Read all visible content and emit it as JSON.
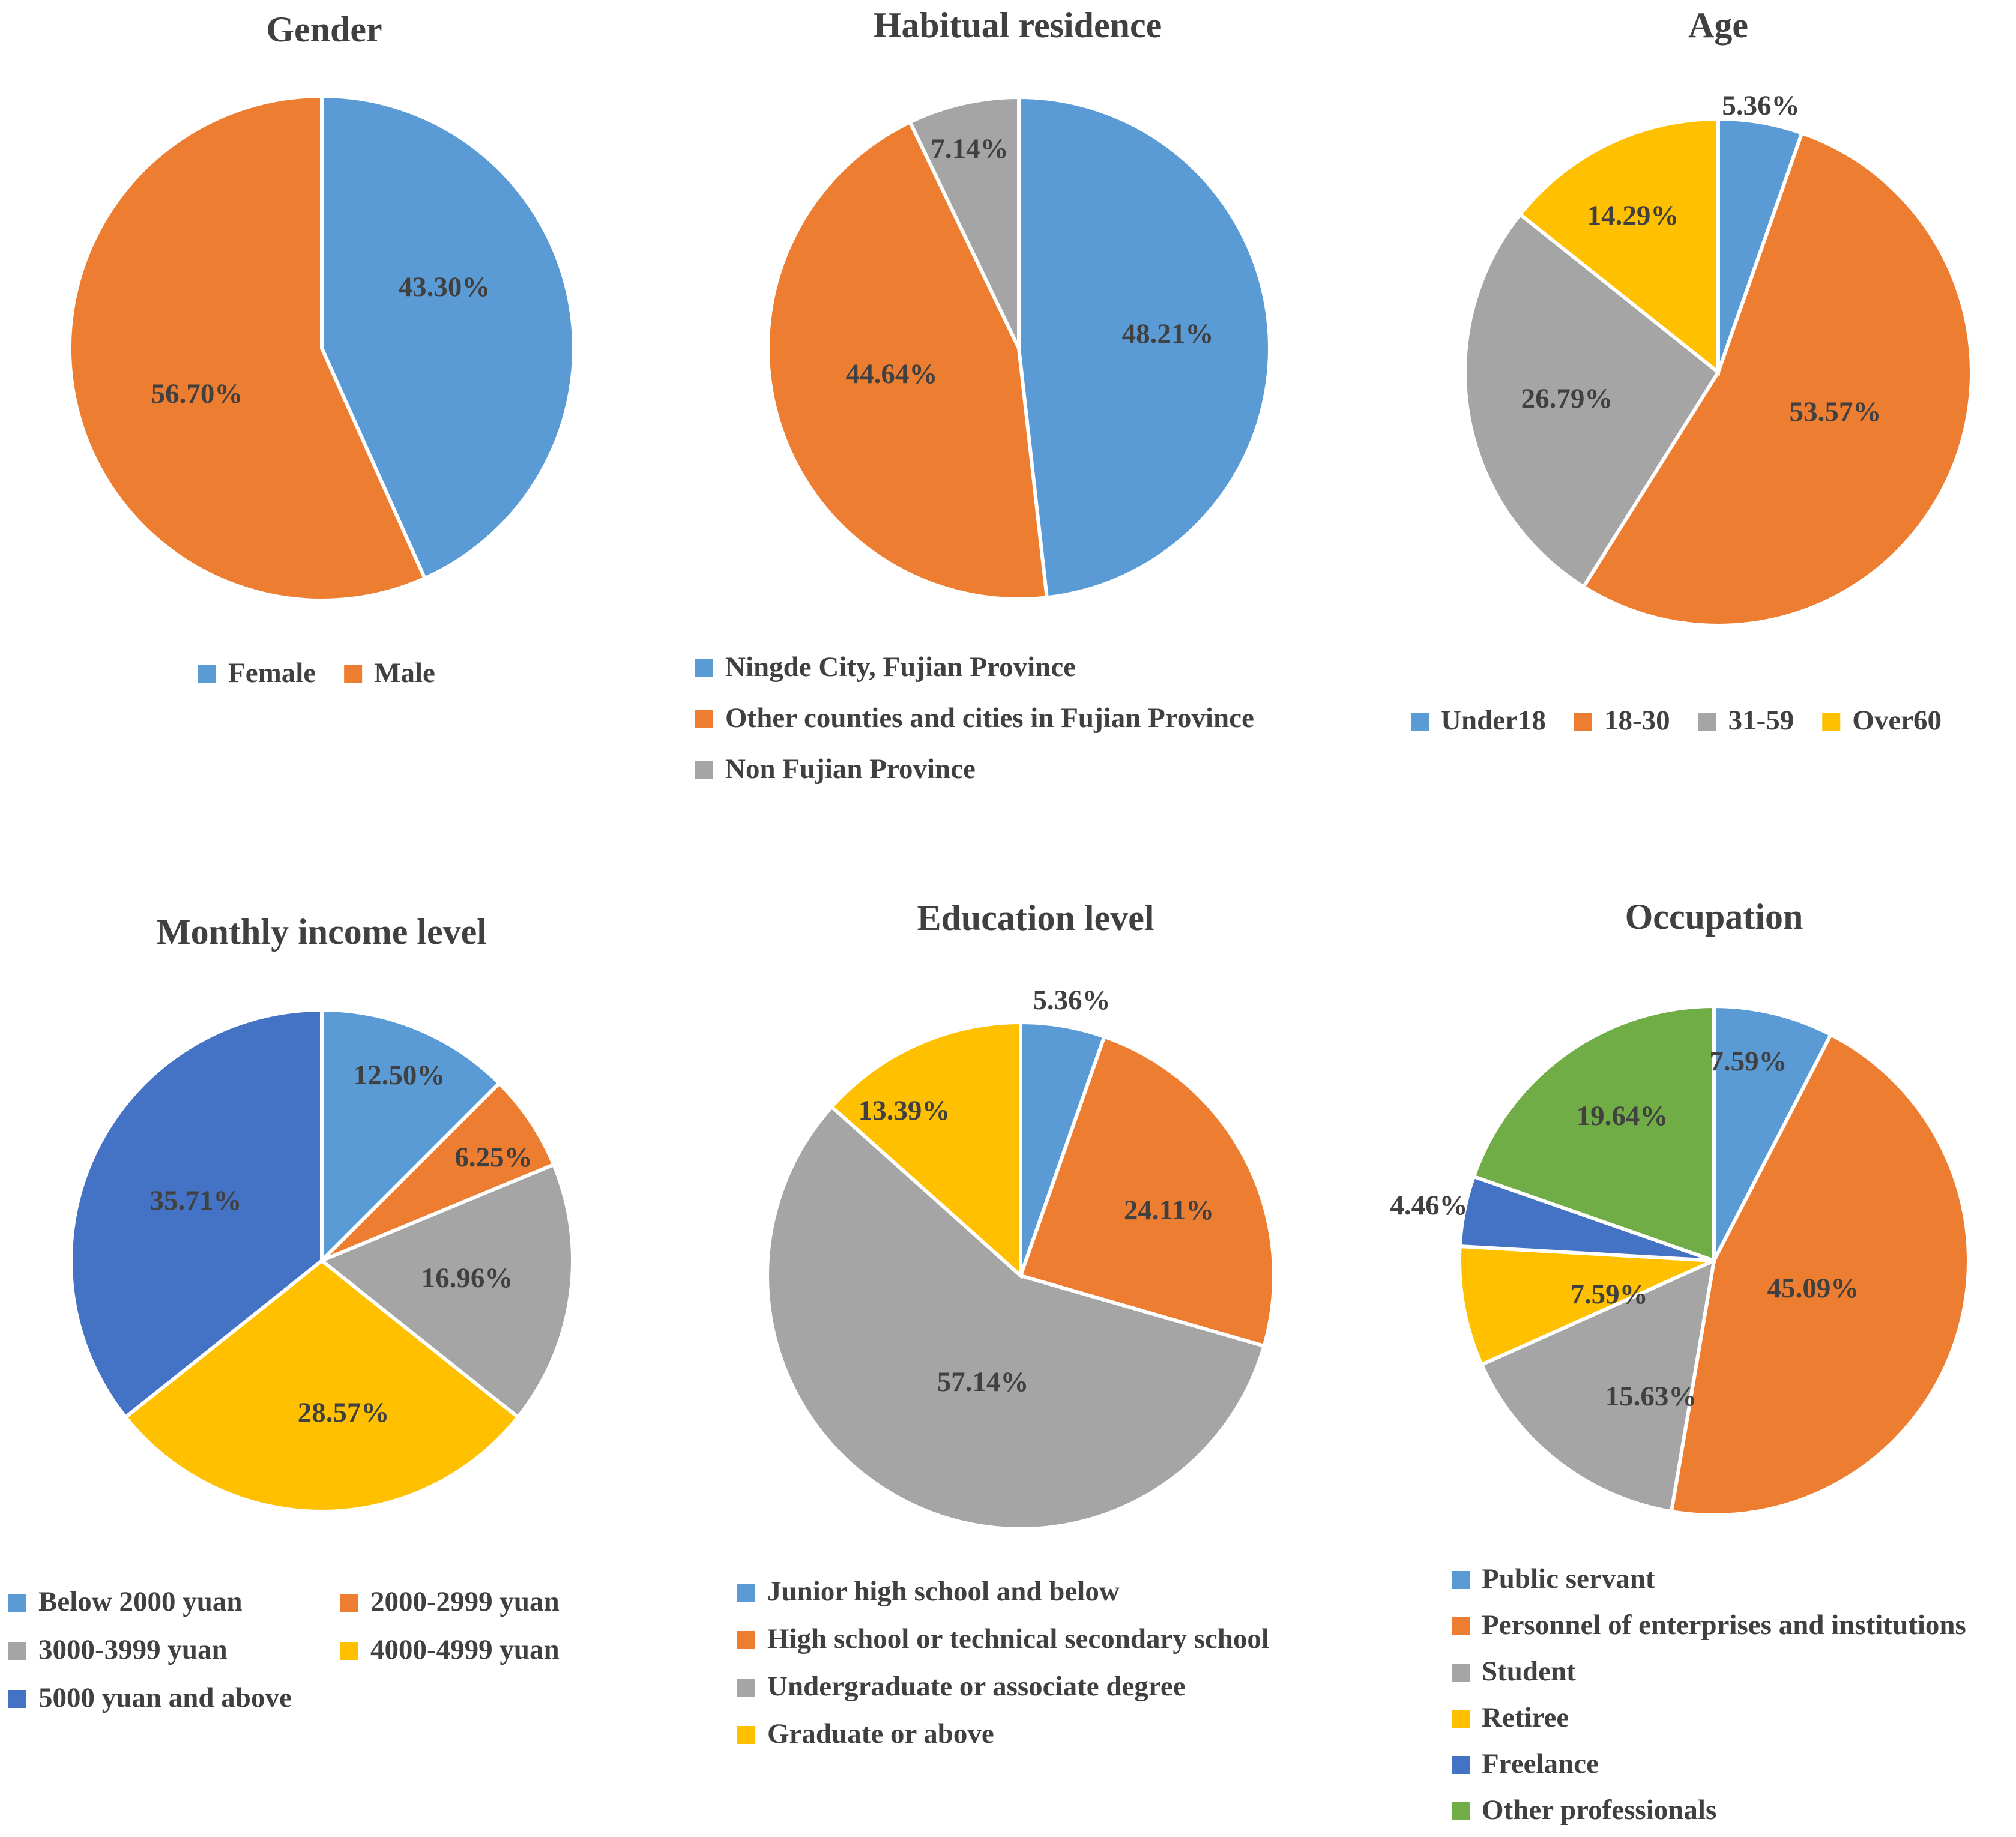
{
  "chart_data": [
    {
      "type": "pie",
      "title": "Gender",
      "legend_position": "bottom",
      "slices": [
        {
          "label": "Female",
          "value": 43.3,
          "display": "43.30%",
          "color": "#5B9BD5"
        },
        {
          "label": "Male",
          "value": 56.7,
          "display": "56.70%",
          "color": "#ED7D31"
        }
      ]
    },
    {
      "type": "pie",
      "title": "Habitual residence",
      "legend_position": "bottom",
      "slices": [
        {
          "label": "Ningde City, Fujian Province",
          "value": 48.21,
          "display": "48.21%",
          "color": "#5B9BD5"
        },
        {
          "label": "Other counties and cities in Fujian Province",
          "value": 44.64,
          "display": "44.64%",
          "color": "#ED7D31"
        },
        {
          "label": "Non Fujian Province",
          "value": 7.14,
          "display": "7.14%",
          "color": "#A5A5A5"
        }
      ]
    },
    {
      "type": "pie",
      "title": "Age",
      "legend_position": "bottom",
      "slices": [
        {
          "label": "Under18",
          "value": 5.36,
          "display": "5.36%",
          "color": "#5B9BD5"
        },
        {
          "label": "18-30",
          "value": 53.57,
          "display": "53.57%",
          "color": "#ED7D31"
        },
        {
          "label": "31-59",
          "value": 26.79,
          "display": "26.79%",
          "color": "#A5A5A5"
        },
        {
          "label": "Over60",
          "value": 14.29,
          "display": "14.29%",
          "color": "#FFC000"
        }
      ]
    },
    {
      "type": "pie",
      "title": "Monthly income level",
      "legend_position": "bottom",
      "slices": [
        {
          "label": "Below 2000 yuan",
          "value": 12.5,
          "display": "12.50%",
          "color": "#5B9BD5"
        },
        {
          "label": "2000-2999 yuan",
          "value": 6.25,
          "display": "6.25%",
          "color": "#ED7D31"
        },
        {
          "label": "3000-3999 yuan",
          "value": 16.96,
          "display": "16.96%",
          "color": "#A5A5A5"
        },
        {
          "label": "4000-4999 yuan",
          "value": 28.57,
          "display": "28.57%",
          "color": "#FFC000"
        },
        {
          "label": "5000 yuan and above",
          "value": 35.71,
          "display": "35.71%",
          "color": "#4472C4"
        }
      ]
    },
    {
      "type": "pie",
      "title": "Education level",
      "legend_position": "bottom",
      "slices": [
        {
          "label": "Junior high school and below",
          "value": 5.36,
          "display": "5.36%",
          "color": "#5B9BD5"
        },
        {
          "label": "High school or technical secondary school",
          "value": 24.11,
          "display": "24.11%",
          "color": "#ED7D31"
        },
        {
          "label": "Undergraduate or associate degree",
          "value": 57.14,
          "display": "57.14%",
          "color": "#A5A5A5"
        },
        {
          "label": "Graduate or above",
          "value": 13.39,
          "display": "13.39%",
          "color": "#FFC000"
        }
      ]
    },
    {
      "type": "pie",
      "title": "Occupation",
      "legend_position": "bottom",
      "slices": [
        {
          "label": "Public servant",
          "value": 7.59,
          "display": "7.59%",
          "color": "#5B9BD5"
        },
        {
          "label": "Personnel of enterprises and institutions",
          "value": 45.09,
          "display": "45.09%",
          "color": "#ED7D31"
        },
        {
          "label": "Student",
          "value": 15.63,
          "display": "15.63%",
          "color": "#A5A5A5"
        },
        {
          "label": "Retiree",
          "value": 7.59,
          "display": "7.59%",
          "color": "#FFC000"
        },
        {
          "label": "Freelance",
          "value": 4.46,
          "display": "4.46%",
          "color": "#4472C4"
        },
        {
          "label": "Other professionals",
          "value": 19.64,
          "display": "19.64%",
          "color": "#70AD47"
        }
      ]
    }
  ]
}
